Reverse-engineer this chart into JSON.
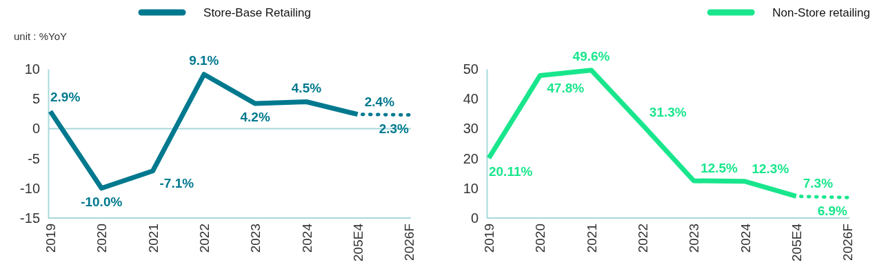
{
  "chart_data": [
    {
      "type": "line",
      "categories": [
        "2019",
        "2020",
        "2021",
        "2022",
        "2023",
        "2024",
        "205E4",
        "2026F"
      ],
      "series": [
        {
          "name": "Store-Base Retailing",
          "color": "#00798f",
          "line_style": "solid",
          "values": [
            2.9,
            -10.0,
            -7.1,
            9.1,
            4.2,
            4.5,
            2.4,
            null
          ],
          "value_labels": [
            "2.9%",
            "-10.0%",
            "-7.1%",
            "9.1%",
            "4.2%",
            "4.5%",
            "2.4%",
            null
          ]
        },
        {
          "color": "#00798f",
          "line_style": "dotted",
          "values": [
            null,
            null,
            null,
            null,
            null,
            null,
            2.4,
            2.3
          ],
          "value_labels": [
            null,
            null,
            null,
            null,
            null,
            null,
            null,
            "2.3%"
          ]
        }
      ],
      "ylim": [
        -15,
        10
      ],
      "yticks": [
        -15,
        -10,
        -5,
        0,
        5,
        10
      ],
      "grid": false,
      "legend": "top",
      "marker": "none",
      "ref_lines": [
        {
          "axis": "y",
          "value": 0,
          "color": "#a8d8dc"
        }
      ],
      "annotations": [
        "unit : %YoY"
      ]
    },
    {
      "type": "line",
      "categories": [
        "2019",
        "2020",
        "2021",
        "2022",
        "2023",
        "2024",
        "205E4",
        "2026F"
      ],
      "series": [
        {
          "name": "Non-Store retailing",
          "color": "#19e68c",
          "line_style": "solid",
          "values": [
            20.11,
            47.8,
            49.6,
            31.3,
            12.5,
            12.3,
            7.3,
            null
          ],
          "value_labels": [
            "20.11%",
            "47.8%",
            "49.6%",
            "31.3%",
            "12.5%",
            "12.3%",
            "7.3%",
            null
          ]
        },
        {
          "color": "#19e68c",
          "line_style": "dotted",
          "values": [
            null,
            null,
            null,
            null,
            null,
            null,
            7.3,
            6.9
          ],
          "value_labels": [
            null,
            null,
            null,
            null,
            null,
            null,
            null,
            "6.9%"
          ]
        }
      ],
      "ylim": [
        0,
        50
      ],
      "yticks": [
        0,
        10,
        20,
        30,
        40,
        50
      ],
      "grid": false,
      "legend": "top right",
      "marker": "none"
    }
  ]
}
